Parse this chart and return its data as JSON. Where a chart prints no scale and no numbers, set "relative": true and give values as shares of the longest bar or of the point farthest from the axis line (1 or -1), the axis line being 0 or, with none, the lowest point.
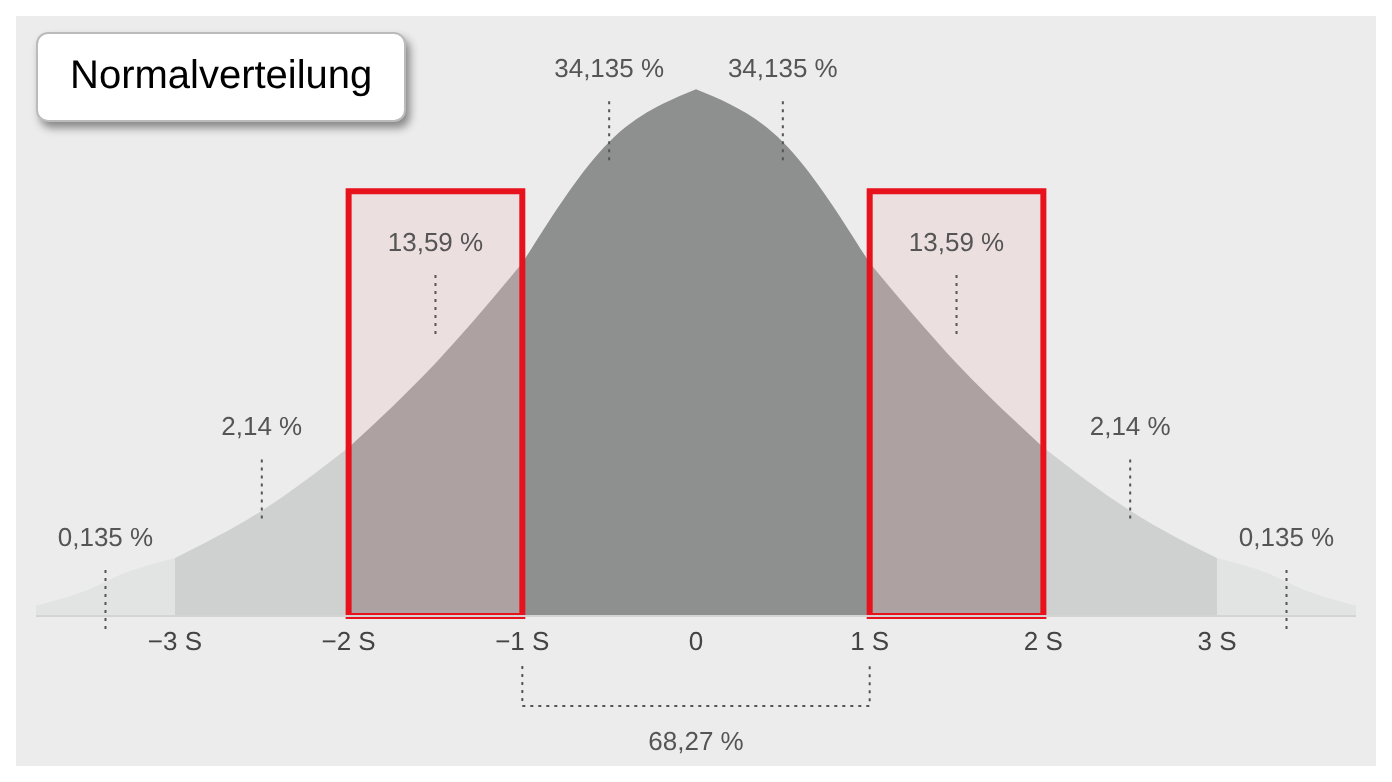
{
  "chart_data": {
    "type": "area",
    "title": "Normalverteilung",
    "relative": true,
    "xlim": [
      -3.8,
      3.8
    ],
    "xticks": [
      {
        "value": -3,
        "label": "−3 S"
      },
      {
        "value": -2,
        "label": "−2 S"
      },
      {
        "value": -1,
        "label": "−1 S"
      },
      0,
      {
        "value": 1,
        "label": "1 S"
      },
      {
        "value": 2,
        "label": "2 S"
      },
      {
        "value": 3,
        "label": "3 S"
      }
    ],
    "series": [
      {
        "color": "#e2e3e3",
        "x": [
          -3.8,
          -3.5,
          -3.3,
          -3
        ],
        "values": [
          0.02,
          0.05,
          0.08,
          0.11
        ]
      },
      {
        "color": "#cfd0d0",
        "x": [
          -3,
          -2.5,
          -2
        ],
        "values": [
          0.11,
          0.2,
          0.32
        ]
      },
      {
        "color": "#a9aaaa",
        "x": [
          -2,
          -1.5,
          -1
        ],
        "values": [
          0.32,
          0.48,
          0.67
        ]
      },
      {
        "color": "#8e8f8f",
        "x": [
          -1,
          -0.5,
          0
        ],
        "values": [
          0.67,
          0.9,
          1
        ]
      },
      {
        "color": "#8e8f8f",
        "x": [
          0,
          0.5,
          1
        ],
        "values": [
          1,
          0.9,
          0.67
        ]
      },
      {
        "color": "#a9aaaa",
        "x": [
          1,
          1.5,
          2
        ],
        "values": [
          0.67,
          0.48,
          0.32
        ]
      },
      {
        "color": "#cfd0d0",
        "x": [
          2,
          2.5,
          3
        ],
        "values": [
          0.32,
          0.2,
          0.11
        ]
      },
      {
        "color": "#e2e3e3",
        "x": [
          3,
          3.3,
          3.5,
          3.8
        ],
        "values": [
          0.11,
          0.08,
          0.05,
          0.02
        ]
      }
    ],
    "bands": [
      {
        "axis": "x",
        "from": -2,
        "to": -1,
        "color": "#e8121c"
      },
      {
        "axis": "x",
        "from": 1,
        "to": 2,
        "color": "#e8121c"
      }
    ],
    "annotations": [
      "0,135 %",
      "2,14 %",
      "13,59 %",
      "34,135 %",
      "34,135 %",
      "13,59 %",
      "2,14 %",
      "0,135 %",
      "68,27 %"
    ]
  }
}
